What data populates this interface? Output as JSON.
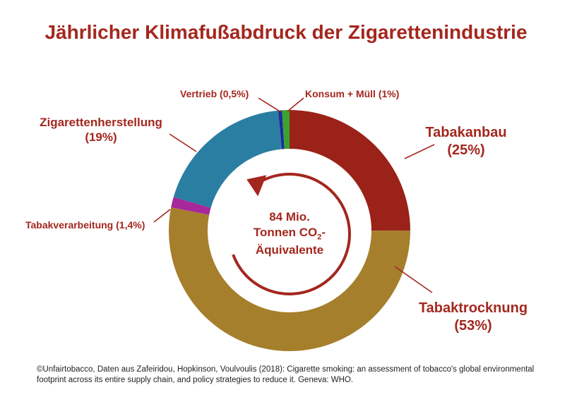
{
  "title": "Jährlicher Klimafußabdruck der Zigarettenindustrie",
  "center_label": {
    "line1": "84 Mio.",
    "line2_pre": "Tonnen CO",
    "line2_sub": "2",
    "line2_post": "-",
    "line3": "Äquivalente"
  },
  "footer": "©Unfairtobacco, Daten aus Zafeiridou, Hopkinson, Voulvoulis (2018): Cigarette smoking: an assessment of tobacco's global environmental footprint across its entire supply chain, and policy strategies to reduce it. Geneva: WHO.",
  "chart_data": {
    "type": "pie",
    "donut": true,
    "slices": [
      {
        "name": "Tabakanbau",
        "label": "(25%)",
        "value": 25,
        "color": "#9b2218"
      },
      {
        "name": "Tabaktrocknung",
        "label": "(53%)",
        "value": 53,
        "color": "#a57f2b"
      },
      {
        "name": "Tabakverarbeitung",
        "label": "(1,4%)",
        "value": 1.4,
        "color": "#a7289a"
      },
      {
        "name": "Zigarettenherstellung",
        "label": "(19%)",
        "value": 19,
        "color": "#2a7ea2"
      },
      {
        "name": "Vertrieb",
        "label": "(0,5%)",
        "value": 0.5,
        "color": "#1d2b9c"
      },
      {
        "name": "Konsum + Müll",
        "label": "(1%)",
        "value": 1,
        "color": "#3aa32e"
      }
    ],
    "start_angle_deg": 0,
    "direction": "clockwise",
    "label_color": "#a3271e",
    "arrow_color": "#a3271e"
  }
}
